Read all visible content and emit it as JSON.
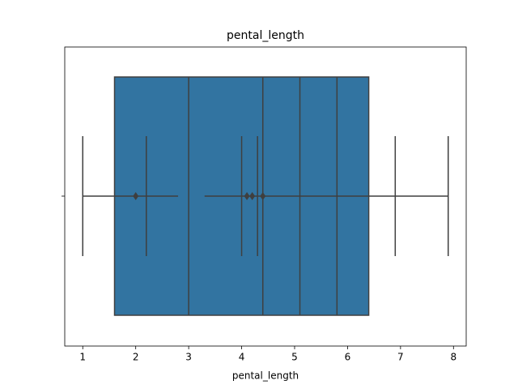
{
  "chart_data": {
    "type": "box",
    "title": "pental_length",
    "x_label": "pental_length",
    "xlim": [
      0.66,
      8.24
    ],
    "xticks": [
      1,
      2,
      3,
      4,
      5,
      6,
      7,
      8
    ],
    "color": "#3274a1",
    "line_color": "#3f3f3f",
    "box": [
      1.6,
      6.4
    ],
    "inner_lines": [
      3.0,
      4.4,
      5.1,
      5.8
    ],
    "whiskers": [
      [
        1.0,
        2.8
      ],
      [
        3.3,
        7.9
      ]
    ],
    "caps": [
      1.0,
      2.2,
      4.0,
      4.3,
      6.9,
      7.9
    ],
    "outliers": [
      2.0,
      4.1,
      4.2,
      4.4
    ]
  }
}
